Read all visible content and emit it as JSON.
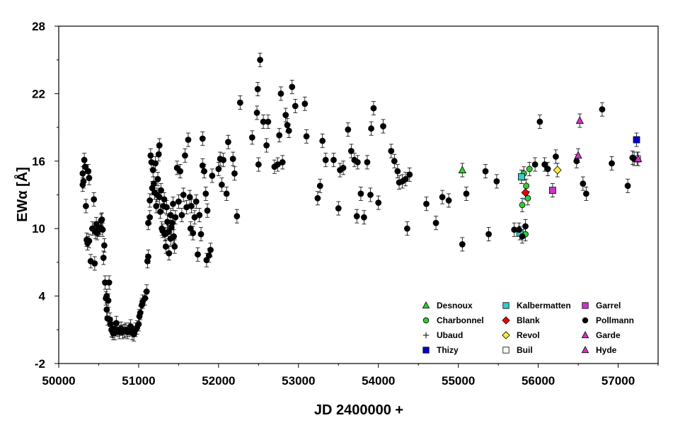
{
  "chart_data": {
    "type": "scatter",
    "xlabel": "JD 2400000 +",
    "ylabel": "EWα [Å]",
    "xlim": [
      50000,
      57500
    ],
    "ylim": [
      -2,
      28
    ],
    "x_ticks": [
      "50000",
      "51000",
      "52000",
      "53000",
      "54000",
      "55000",
      "56000",
      "57000"
    ],
    "y_ticks": [
      "-2",
      "4",
      "10",
      "16",
      "22",
      "28"
    ],
    "error_bar": 0.6,
    "legend_position": "bottom-right",
    "series": [
      {
        "name": "Desnoux",
        "marker": "triangle",
        "color": "#33cc33",
        "points": [
          [
            55050,
            15.2
          ]
        ]
      },
      {
        "name": "Charbonnel",
        "marker": "circle",
        "color": "#33cc33",
        "points": [
          [
            55800,
            12.1
          ],
          [
            55820,
            14.9
          ],
          [
            55840,
            9.5
          ],
          [
            55850,
            13.8
          ],
          [
            55870,
            12.7
          ],
          [
            55890,
            15.3
          ]
        ]
      },
      {
        "name": "Ubaud",
        "marker": "plus",
        "color": "#000000",
        "points": []
      },
      {
        "name": "Thizy",
        "marker": "square",
        "color": "#0000cc",
        "points": [
          [
            57230,
            17.9
          ]
        ]
      },
      {
        "name": "Kalbermatten",
        "marker": "square",
        "color": "#33cccc",
        "points": [
          [
            55770,
            9.6
          ],
          [
            55790,
            14.6
          ]
        ]
      },
      {
        "name": "Blank",
        "marker": "diamond",
        "color": "#ee0000",
        "points": [
          [
            55840,
            13.2
          ]
        ]
      },
      {
        "name": "Revol",
        "marker": "diamond",
        "color": "#ffee33",
        "points": [
          [
            56240,
            15.2
          ]
        ]
      },
      {
        "name": "Buil",
        "marker": "square-open",
        "color": "#ffffff",
        "points": [
          [
            57240,
            16.2
          ]
        ]
      },
      {
        "name": "Garrel",
        "marker": "square",
        "color": "#cc33cc",
        "points": [
          [
            56180,
            13.4
          ]
        ]
      },
      {
        "name": "Pollmann",
        "marker": "circle",
        "color": "#000000",
        "points": [
          [
            50300,
            14.9
          ],
          [
            50300,
            13.9
          ],
          [
            50310,
            14.2
          ],
          [
            50320,
            16.1
          ],
          [
            50330,
            15.5
          ],
          [
            50340,
            12.0
          ],
          [
            50350,
            9.0
          ],
          [
            50360,
            8.7
          ],
          [
            50370,
            15.1
          ],
          [
            50380,
            14.5
          ],
          [
            50380,
            8.9
          ],
          [
            50400,
            7.1
          ],
          [
            50420,
            10.0
          ],
          [
            50440,
            12.6
          ],
          [
            50450,
            6.9
          ],
          [
            50460,
            9.7
          ],
          [
            50470,
            10.4
          ],
          [
            50480,
            9.6
          ],
          [
            50500,
            10.0
          ],
          [
            50500,
            9.9
          ],
          [
            50520,
            10.1
          ],
          [
            50530,
            10.7
          ],
          [
            50540,
            10.8
          ],
          [
            50550,
            9.9
          ],
          [
            50560,
            7.4
          ],
          [
            50570,
            8.5
          ],
          [
            50580,
            5.2
          ],
          [
            50590,
            3.8
          ],
          [
            50600,
            2.8
          ],
          [
            50600,
            4.0
          ],
          [
            50610,
            2.0
          ],
          [
            50620,
            3.6
          ],
          [
            50630,
            5.2
          ],
          [
            50640,
            1.9
          ],
          [
            50650,
            1.5
          ],
          [
            50660,
            1.0
          ],
          [
            50670,
            0.9
          ],
          [
            50680,
            0.7
          ],
          [
            50700,
            0.7
          ],
          [
            50700,
            1.1
          ],
          [
            50720,
            1.6
          ],
          [
            50740,
            1.0
          ],
          [
            50760,
            0.8
          ],
          [
            50780,
            1.1
          ],
          [
            50800,
            0.8
          ],
          [
            50820,
            0.9
          ],
          [
            50840,
            1.0
          ],
          [
            50860,
            0.8
          ],
          [
            50880,
            1.0
          ],
          [
            50900,
            1.3
          ],
          [
            50920,
            0.7
          ],
          [
            50940,
            0.6
          ],
          [
            50960,
            1.0
          ],
          [
            50980,
            1.2
          ],
          [
            51000,
            1.5
          ],
          [
            51010,
            2.2
          ],
          [
            51020,
            2.5
          ],
          [
            51040,
            3.2
          ],
          [
            51050,
            3.5
          ],
          [
            51080,
            3.8
          ],
          [
            51100,
            4.4
          ],
          [
            51110,
            7.1
          ],
          [
            51120,
            7.5
          ],
          [
            51120,
            10.5
          ],
          [
            51140,
            11.0
          ],
          [
            51140,
            12.5
          ],
          [
            51150,
            16.5
          ],
          [
            51160,
            15.9
          ],
          [
            51170,
            13.6
          ],
          [
            51180,
            15.2
          ],
          [
            51190,
            14.0
          ],
          [
            51200,
            13.2
          ],
          [
            51210,
            15.8
          ],
          [
            51220,
            12.0
          ],
          [
            51230,
            13.0
          ],
          [
            51240,
            14.4
          ],
          [
            51250,
            16.6
          ],
          [
            51260,
            17.4
          ],
          [
            51260,
            12.8
          ],
          [
            51270,
            11.5
          ],
          [
            51280,
            13.4
          ],
          [
            51290,
            10.0
          ],
          [
            51300,
            9.8
          ],
          [
            51310,
            12.0
          ],
          [
            51320,
            12.6
          ],
          [
            51330,
            9.5
          ],
          [
            51340,
            8.4
          ],
          [
            51350,
            11.9
          ],
          [
            51360,
            10.6
          ],
          [
            51370,
            9.7
          ],
          [
            51380,
            7.8
          ],
          [
            51400,
            9.1
          ],
          [
            51400,
            11.2
          ],
          [
            51410,
            10.1
          ],
          [
            51420,
            10.5
          ],
          [
            51430,
            12.2
          ],
          [
            51440,
            9.3
          ],
          [
            51450,
            8.4
          ],
          [
            51460,
            11.0
          ],
          [
            51480,
            15.4
          ],
          [
            51500,
            12.4
          ],
          [
            51520,
            15.1
          ],
          [
            51540,
            11.2
          ],
          [
            51560,
            13.0
          ],
          [
            51580,
            16.5
          ],
          [
            51600,
            11.9
          ],
          [
            51620,
            17.9
          ],
          [
            51640,
            12.8
          ],
          [
            51650,
            10.0
          ],
          [
            51660,
            12.0
          ],
          [
            51680,
            9.6
          ],
          [
            51700,
            11.0
          ],
          [
            51720,
            12.4
          ],
          [
            51740,
            7.7
          ],
          [
            51760,
            11.2
          ],
          [
            51780,
            9.5
          ],
          [
            51800,
            18.0
          ],
          [
            51800,
            15.6
          ],
          [
            51820,
            15.1
          ],
          [
            51840,
            13.1
          ],
          [
            51850,
            7.2
          ],
          [
            51860,
            11.6
          ],
          [
            51880,
            7.6
          ],
          [
            51900,
            8.1
          ],
          [
            51920,
            14.7
          ],
          [
            52000,
            15.3
          ],
          [
            52020,
            16.2
          ],
          [
            52040,
            13.9
          ],
          [
            52060,
            16.1
          ],
          [
            52100,
            13.1
          ],
          [
            52120,
            17.7
          ],
          [
            52180,
            16.2
          ],
          [
            52200,
            14.9
          ],
          [
            52230,
            11.1
          ],
          [
            52270,
            21.2
          ],
          [
            52420,
            18.1
          ],
          [
            52480,
            20.3
          ],
          [
            52490,
            22.4
          ],
          [
            52500,
            15.7
          ],
          [
            52520,
            25.0
          ],
          [
            52560,
            19.5
          ],
          [
            52600,
            17.4
          ],
          [
            52620,
            19.5
          ],
          [
            52700,
            15.5
          ],
          [
            52740,
            15.7
          ],
          [
            52760,
            18.3
          ],
          [
            52780,
            22.0
          ],
          [
            52800,
            15.9
          ],
          [
            52840,
            20.1
          ],
          [
            52860,
            19.2
          ],
          [
            52880,
            18.7
          ],
          [
            52920,
            22.6
          ],
          [
            52960,
            20.9
          ],
          [
            53080,
            21.1
          ],
          [
            53100,
            18.2
          ],
          [
            53240,
            12.7
          ],
          [
            53270,
            13.8
          ],
          [
            53300,
            17.8
          ],
          [
            53340,
            16.1
          ],
          [
            53440,
            16.1
          ],
          [
            53500,
            11.8
          ],
          [
            53520,
            15.2
          ],
          [
            53560,
            15.4
          ],
          [
            53620,
            18.8
          ],
          [
            53660,
            16.9
          ],
          [
            53700,
            16.1
          ],
          [
            53730,
            11.1
          ],
          [
            53740,
            15.9
          ],
          [
            53780,
            13.1
          ],
          [
            53820,
            11.0
          ],
          [
            53860,
            15.9
          ],
          [
            53900,
            13.0
          ],
          [
            53910,
            18.9
          ],
          [
            53940,
            20.7
          ],
          [
            54000,
            12.3
          ],
          [
            54060,
            19.1
          ],
          [
            54160,
            16.9
          ],
          [
            54200,
            16.0
          ],
          [
            54240,
            15.1
          ],
          [
            54260,
            14.1
          ],
          [
            54300,
            14.2
          ],
          [
            54340,
            14.4
          ],
          [
            54360,
            10.0
          ],
          [
            54390,
            14.8
          ],
          [
            54600,
            12.2
          ],
          [
            54720,
            10.5
          ],
          [
            54800,
            12.8
          ],
          [
            54880,
            12.5
          ],
          [
            55050,
            8.6
          ],
          [
            55100,
            13.1
          ],
          [
            55340,
            15.1
          ],
          [
            55380,
            9.5
          ],
          [
            55480,
            14.2
          ],
          [
            55700,
            9.9
          ],
          [
            55760,
            9.9
          ],
          [
            55800,
            9.3
          ],
          [
            55840,
            10.2
          ],
          [
            55960,
            15.7
          ],
          [
            56020,
            19.5
          ],
          [
            56080,
            15.7
          ],
          [
            56120,
            15.3
          ],
          [
            56220,
            16.4
          ],
          [
            56480,
            16.0
          ],
          [
            56560,
            14.0
          ],
          [
            56600,
            13.1
          ],
          [
            56800,
            20.6
          ],
          [
            56920,
            15.8
          ],
          [
            57120,
            13.8
          ],
          [
            57180,
            16.3
          ],
          [
            57200,
            16.2
          ]
        ]
      },
      {
        "name": "Garde",
        "marker": "triangle",
        "color": "#cc33cc",
        "points": [
          [
            56500,
            16.5
          ]
        ]
      },
      {
        "name": "Hyde",
        "marker": "triangle",
        "color": "#cc33cc",
        "points": [
          [
            56520,
            19.6
          ],
          [
            57250,
            16.2
          ]
        ]
      }
    ],
    "legend_columns": [
      [
        "Desnoux",
        "Charbonnel",
        "Ubaud",
        "Thizy"
      ],
      [
        "Kalbermatten",
        "Blank",
        "Revol",
        "Buil"
      ],
      [
        "Garrel",
        "Pollmann",
        "Garde",
        "Hyde"
      ]
    ]
  }
}
